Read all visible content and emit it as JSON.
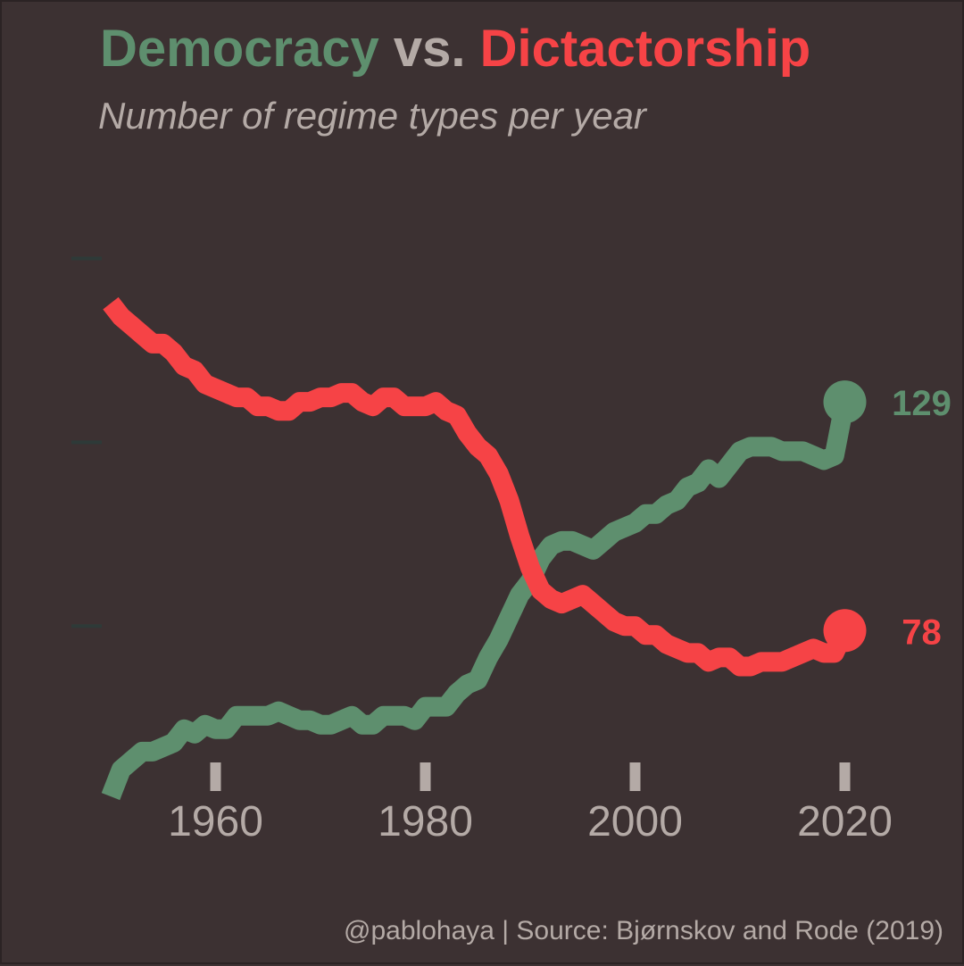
{
  "colors": {
    "background": "#3c3132",
    "democracy": "#5e8f6e",
    "dictatorship": "#f64346",
    "text_muted": "#b4aaa6",
    "y_ticks": "#2e3a38"
  },
  "title": {
    "part1": "Democracy",
    "part2": " vs. ",
    "part3": "Dictactorship"
  },
  "subtitle": "Number of regime types per year",
  "caption": "@pablohaya | Source: Bjørnskov and Rode (2019)",
  "chart_data": {
    "type": "line",
    "title": "Democracy vs. Dictactorship",
    "subtitle": "Number of regime types per year",
    "xlabel": "",
    "ylabel": "",
    "xlim": [
      1942,
      2030
    ],
    "ylim": [
      45,
      182
    ],
    "x_ticks": [
      1960,
      1980,
      2000,
      2020
    ],
    "y_ticks": [
      79,
      120,
      161
    ],
    "grid": false,
    "legend": "none",
    "x": [
      1950,
      1951,
      1952,
      1953,
      1954,
      1955,
      1956,
      1957,
      1958,
      1959,
      1960,
      1961,
      1962,
      1963,
      1964,
      1965,
      1966,
      1967,
      1968,
      1969,
      1970,
      1971,
      1972,
      1973,
      1974,
      1975,
      1976,
      1977,
      1978,
      1979,
      1980,
      1981,
      1982,
      1983,
      1984,
      1985,
      1986,
      1987,
      1988,
      1989,
      1990,
      1991,
      1992,
      1993,
      1994,
      1995,
      1996,
      1997,
      1998,
      1999,
      2000,
      2001,
      2002,
      2003,
      2004,
      2005,
      2006,
      2007,
      2008,
      2009,
      2010,
      2011,
      2012,
      2013,
      2014,
      2015,
      2016,
      2017,
      2018,
      2019,
      2020
    ],
    "series": [
      {
        "name": "Democracy",
        "values": [
          41,
          47,
          49,
          51,
          51,
          52,
          53,
          56,
          55,
          57,
          56,
          56,
          59,
          59,
          59,
          59,
          60,
          59,
          58,
          58,
          57,
          57,
          58,
          59,
          57,
          57,
          59,
          59,
          59,
          58,
          61,
          61,
          61,
          64,
          66,
          67,
          72,
          76,
          81,
          86,
          89,
          94,
          97,
          98,
          98,
          97,
          96,
          98,
          100,
          101,
          102,
          104,
          104,
          106,
          107,
          110,
          111,
          114,
          112,
          115,
          118,
          119,
          119,
          119,
          118,
          118,
          118,
          117,
          116,
          117,
          129
        ],
        "end_label": "129"
      },
      {
        "name": "Dictactorship",
        "values": [
          151,
          148,
          146,
          144,
          142,
          142,
          140,
          137,
          136,
          133,
          132,
          131,
          130,
          130,
          128,
          128,
          127,
          127,
          129,
          129,
          130,
          130,
          131,
          131,
          129,
          128,
          130,
          130,
          128,
          128,
          128,
          129,
          127,
          126,
          122,
          119,
          117,
          113,
          107,
          99,
          92,
          87,
          85,
          84,
          85,
          86,
          84,
          82,
          80,
          79,
          79,
          77,
          77,
          75,
          74,
          73,
          73,
          71,
          72,
          72,
          70,
          70,
          71,
          71,
          71,
          72,
          73,
          74,
          73,
          73,
          78
        ],
        "end_label": "78"
      }
    ]
  }
}
